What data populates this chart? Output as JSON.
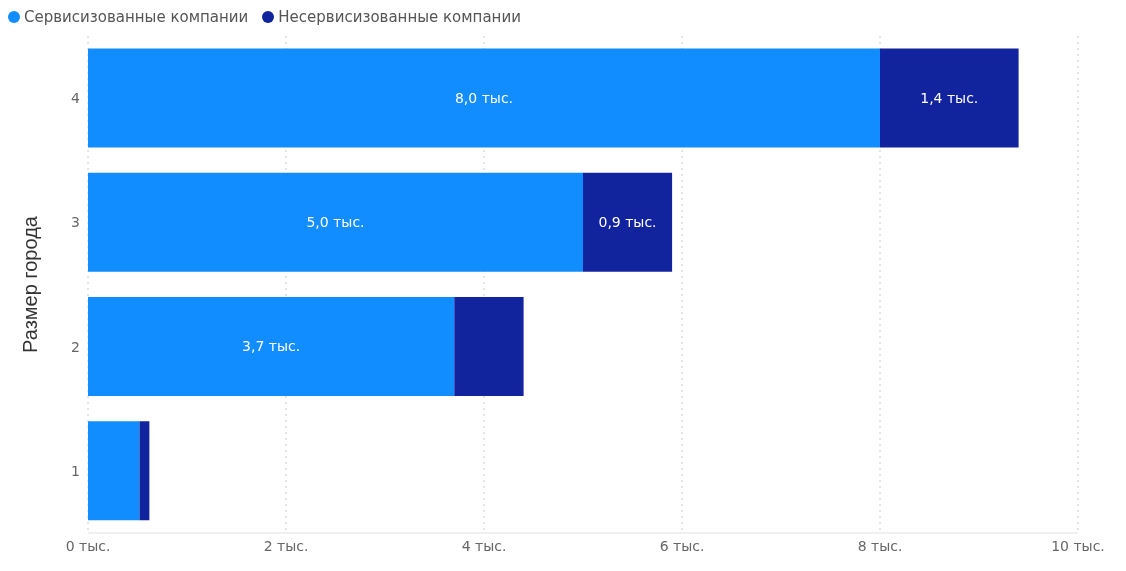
{
  "chart_data": {
    "type": "bar",
    "orientation": "horizontal",
    "stacked": true,
    "ylabel": "Размер города",
    "categories": [
      "4",
      "3",
      "2",
      "1"
    ],
    "series": [
      {
        "name": "Сервисизованные компании",
        "color": "#118dff",
        "values": [
          8.0,
          5.0,
          3.7,
          0.52
        ],
        "value_labels": [
          "8,0 тыс.",
          "5,0 тыс.",
          "3,7 тыс.",
          null
        ]
      },
      {
        "name": "Несервисизованные компании",
        "color": "#12239e",
        "values": [
          1.4,
          0.9,
          0.7,
          0.1
        ],
        "value_labels": [
          "1,4 тыс.",
          "0,9 тыс.",
          null,
          null
        ]
      }
    ],
    "xlim": [
      0,
      10
    ],
    "xticks": [
      {
        "value": 0,
        "label": "0 тыс."
      },
      {
        "value": 2,
        "label": "2 тыс."
      },
      {
        "value": 4,
        "label": "4 тыс."
      },
      {
        "value": 6,
        "label": "6 тыс."
      },
      {
        "value": 8,
        "label": "8 тыс."
      },
      {
        "value": 10,
        "label": "10 тыс."
      }
    ],
    "grid": "x",
    "legend": "top left"
  }
}
